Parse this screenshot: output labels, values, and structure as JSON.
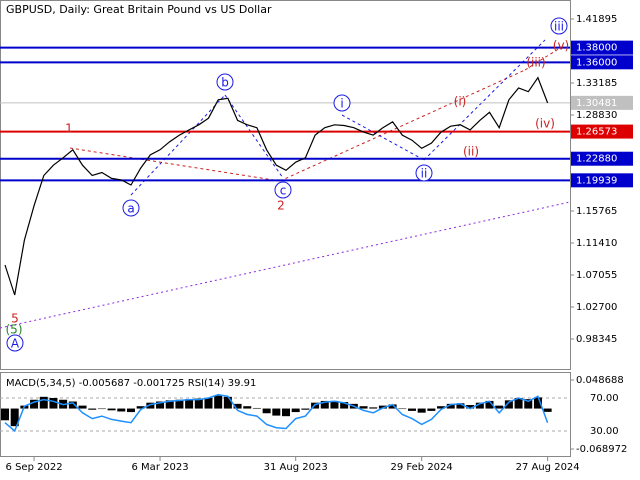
{
  "chart_data": [
    {
      "type": "line",
      "title": "GBPUSD, Daily:  Great Britain Pound vs US Dollar",
      "categories": [
        null,
        null,
        null,
        "6 Sep 2022",
        null,
        null,
        null,
        null,
        null,
        null,
        null,
        null,
        null,
        null,
        null,
        null,
        "6 Mar 2023",
        null,
        null,
        null,
        null,
        null,
        null,
        null,
        null,
        null,
        null,
        null,
        null,
        null,
        "31 Aug 2023",
        null,
        null,
        null,
        null,
        null,
        null,
        null,
        null,
        null,
        null,
        null,
        null,
        "29 Feb 2024",
        null,
        null,
        null,
        null,
        null,
        null,
        null,
        null,
        null,
        null,
        null,
        null,
        "27 Aug 2024"
      ],
      "values": [
        1.0842,
        1.0433,
        1.118,
        1.165,
        1.206,
        1.22,
        1.23,
        1.241,
        1.22,
        1.206,
        1.21,
        1.202,
        1.2,
        1.193,
        1.216,
        1.234,
        1.241,
        1.252,
        1.261,
        1.268,
        1.275,
        1.284,
        1.309,
        1.311,
        1.281,
        1.275,
        1.271,
        1.241,
        1.22,
        1.213,
        1.224,
        1.23,
        1.261,
        1.271,
        1.275,
        1.274,
        1.271,
        1.265,
        1.261,
        1.271,
        1.279,
        1.261,
        1.254,
        1.243,
        1.25,
        1.265,
        1.273,
        1.275,
        1.268,
        1.281,
        1.292,
        1.271,
        1.309,
        1.325,
        1.32,
        1.339,
        1.30481
      ],
      "color": "#000000",
      "ylim": [
        0.94398,
        1.43392
      ],
      "yticks": [
        1.41895,
        1.33185,
        {
          "value": 1.2883,
          "label": "1.28830"
        },
        1.15765,
        {
          "value": 1.1141,
          "label": "1.11410"
        },
        1.07055,
        {
          "value": 1.027,
          "label": "1.02700"
        },
        0.98345
      ],
      "levels": [
        {
          "value": 1.38,
          "label": "1.38000",
          "color": "#0000cc"
        },
        {
          "value": 1.36,
          "label": "1.36000",
          "color": "#0000cc"
        },
        {
          "value": 1.30481,
          "label": "1.30481",
          "color": "#c0c0c0"
        },
        {
          "value": 1.26573,
          "label": "1.26573",
          "color": "#dd0000"
        },
        {
          "value": 1.2288,
          "label": "1.22880",
          "color": "#0000cc"
        },
        {
          "value": 1.19939,
          "label": "1.19939",
          "color": "#0000cc"
        }
      ],
      "annotations": [
        "b",
        "a",
        "c",
        "i",
        "ii",
        "iii",
        "A",
        "(i)",
        "(ii)",
        "(iii)",
        "(iv)",
        "(v)",
        "1",
        "2",
        "5",
        "(5)"
      ]
    },
    {
      "type": "macd",
      "title": "MACD(5,34,5) -0.005687 -0.001725 RSI(14) 39.91",
      "ylim": [
        -0.080908,
        0.06233
      ],
      "yticks": [
        0.048688,
        -0.068972
      ],
      "y2lim": [
        -0.3,
        101.5
      ],
      "y2ticks": [
        {
          "value": 70,
          "label": "70.00"
        },
        {
          "value": 30,
          "label": "30.00"
        }
      ],
      "series": [
        {
          "color": "#000000",
          "values": [
            -0.02,
            -0.03,
            0.005,
            0.015,
            0.02,
            0.018,
            0.015,
            0.012,
            0.005,
            -0.002,
            0.0,
            -0.003,
            -0.005,
            -0.006,
            0.004,
            0.01,
            0.012,
            0.014,
            0.015,
            0.016,
            0.017,
            0.018,
            0.022,
            0.02,
            0.008,
            0.004,
            0.001,
            -0.008,
            -0.012,
            -0.013,
            -0.006,
            -0.002,
            0.01,
            0.013,
            0.013,
            0.011,
            0.008,
            0.004,
            0.002,
            0.005,
            0.007,
            0.0,
            -0.004,
            -0.007,
            -0.004,
            0.004,
            0.008,
            0.009,
            0.006,
            0.01,
            0.013,
            0.005,
            0.014,
            0.018,
            0.016,
            0.019,
            -0.005687
          ]
        },
        {
          "color": "#1e90ff",
          "axis": "y2",
          "values": [
            40,
            30,
            60,
            65,
            68,
            66,
            62,
            64,
            52,
            45,
            48,
            44,
            42,
            40,
            56,
            62,
            64,
            66,
            67,
            68,
            68,
            70,
            74,
            72,
            55,
            50,
            48,
            38,
            34,
            33,
            45,
            48,
            62,
            65,
            66,
            64,
            60,
            55,
            52,
            58,
            62,
            50,
            45,
            38,
            44,
            56,
            62,
            63,
            57,
            63,
            66,
            52,
            65,
            70,
            66,
            72,
            39.91
          ]
        }
      ]
    }
  ]
}
